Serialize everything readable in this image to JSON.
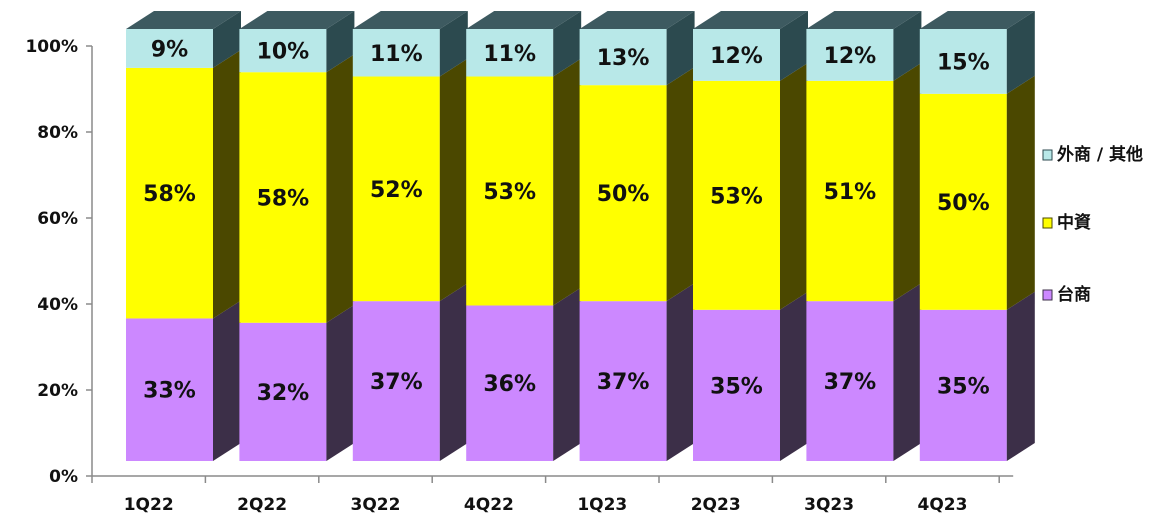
{
  "chart_data": {
    "type": "bar",
    "stacked": true,
    "orientation": "vertical",
    "style": "3d",
    "categories": [
      "1Q22",
      "2Q22",
      "3Q22",
      "4Q22",
      "1Q23",
      "2Q23",
      "3Q23",
      "4Q23"
    ],
    "series": [
      {
        "name": "台商",
        "values": [
          33,
          32,
          37,
          36,
          37,
          35,
          37,
          35
        ],
        "labels": [
          "33%",
          "32%",
          "37%",
          "36%",
          "37%",
          "35%",
          "37%",
          "35%"
        ],
        "color": "#cc88ff",
        "side_color": "#3c2f48",
        "top_color": "#b680e3"
      },
      {
        "name": "中資",
        "values": [
          58,
          58,
          52,
          53,
          50,
          53,
          51,
          50
        ],
        "labels": [
          "58%",
          "58%",
          "52%",
          "53%",
          "50%",
          "53%",
          "51%",
          "50%"
        ],
        "color": "#ffff00",
        "side_color": "#4b4800",
        "top_color": "#e2e000"
      },
      {
        "name": "外商 / 其他",
        "values": [
          9,
          10,
          11,
          11,
          13,
          12,
          12,
          15
        ],
        "labels": [
          "9%",
          "10%",
          "11%",
          "11%",
          "13%",
          "12%",
          "12%",
          "15%"
        ],
        "color": "#b8e8e8",
        "side_color": "#2c4a4f",
        "top_color": "#3d5a60"
      }
    ],
    "y_axis": {
      "min": 0,
      "max": 100,
      "ticks": [
        0,
        20,
        40,
        60,
        80,
        100
      ],
      "tick_labels": [
        "0%",
        "20%",
        "40%",
        "60%",
        "80%",
        "100%"
      ]
    },
    "legend": {
      "position": "right",
      "order": [
        "外商 / 其他",
        "中資",
        "台商"
      ]
    },
    "title": "",
    "xlabel": "",
    "ylabel": "",
    "grid": false
  }
}
